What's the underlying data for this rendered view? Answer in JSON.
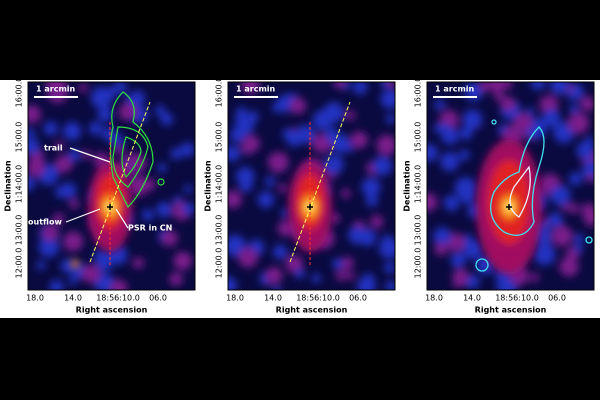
{
  "panels": [
    {
      "scale_bar": "1 arcmin",
      "y_label": "Declination",
      "x_label": "Right ascension",
      "y_ticks": [
        "16:00.0",
        "15:00.0",
        "1:14:00.0",
        "13:00.0",
        "12:00.0"
      ],
      "x_ticks": [
        "18.0",
        "14.0",
        "18:56:10.0",
        "06.0"
      ],
      "annotations": [
        "trail",
        "outflow",
        "PSR in CN"
      ]
    },
    {
      "scale_bar": "1 arcmin",
      "y_label": "Declination",
      "x_label": "Right ascension",
      "y_ticks": [
        "16:00.0",
        "15:00.0",
        "1:14:00.0",
        "13:00.0",
        "12:00.0"
      ],
      "x_ticks": [
        "18.0",
        "14.0",
        "18:56:10.0",
        "06.0"
      ]
    },
    {
      "scale_bar": "1 arcmin",
      "y_label": "Declination",
      "x_label": "Right ascension",
      "y_ticks": [
        "16:00.0",
        "15:00.0",
        "1:14:00.0",
        "13:00.0",
        "12:00.0"
      ],
      "x_ticks": [
        "18.0",
        "14.0",
        "18:56:10.0",
        "06.0"
      ]
    }
  ]
}
